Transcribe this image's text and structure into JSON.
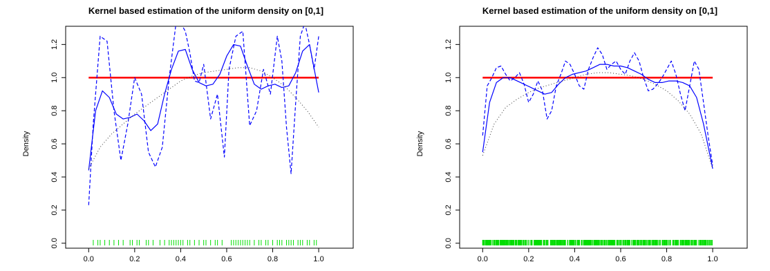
{
  "chart_data": [
    {
      "type": "line",
      "title": "Kernel based estimation of the uniform density on [0,1]",
      "xlabel": "",
      "ylabel": "Density",
      "xlim": [
        -0.1,
        1.15
      ],
      "ylim": [
        -0.03,
        1.31
      ],
      "x_ticks": [
        "0.0",
        "0.2",
        "0.4",
        "0.6",
        "0.8",
        "1.0"
      ],
      "y_ticks": [
        "0.0",
        "0.2",
        "0.4",
        "0.6",
        "0.8",
        "1.0",
        "1.2"
      ],
      "grid": false,
      "colors": {
        "true_density": "#ff0000",
        "estimates": "#0000ff",
        "wide_estimate": "#333333",
        "rug": "#00dd00"
      },
      "series": [
        {
          "style": "solid-red",
          "x": [
            0.0,
            1.0
          ],
          "y": [
            1.0,
            1.0
          ]
        },
        {
          "style": "solid-blue",
          "x": [
            0.0,
            0.03,
            0.06,
            0.09,
            0.12,
            0.15,
            0.18,
            0.21,
            0.24,
            0.27,
            0.3,
            0.33,
            0.36,
            0.39,
            0.42,
            0.45,
            0.48,
            0.51,
            0.54,
            0.57,
            0.6,
            0.63,
            0.66,
            0.69,
            0.72,
            0.75,
            0.78,
            0.81,
            0.84,
            0.87,
            0.9,
            0.93,
            0.96,
            1.0
          ],
          "y": [
            0.44,
            0.8,
            0.92,
            0.88,
            0.78,
            0.75,
            0.76,
            0.78,
            0.74,
            0.68,
            0.72,
            0.9,
            1.05,
            1.16,
            1.17,
            1.05,
            0.97,
            0.95,
            0.96,
            1.02,
            1.13,
            1.2,
            1.19,
            1.07,
            0.96,
            0.93,
            0.95,
            0.96,
            0.94,
            0.95,
            1.03,
            1.16,
            1.2,
            0.91
          ]
        },
        {
          "style": "dashed-blue",
          "x": [
            0.0,
            0.02,
            0.05,
            0.08,
            0.11,
            0.14,
            0.17,
            0.2,
            0.23,
            0.26,
            0.29,
            0.32,
            0.35,
            0.38,
            0.4,
            0.42,
            0.44,
            0.46,
            0.48,
            0.5,
            0.53,
            0.56,
            0.59,
            0.61,
            0.64,
            0.67,
            0.7,
            0.73,
            0.76,
            0.79,
            0.82,
            0.84,
            0.86,
            0.88,
            0.9,
            0.92,
            0.94,
            0.96,
            0.98,
            1.0
          ],
          "y": [
            0.23,
            0.72,
            1.25,
            1.22,
            0.8,
            0.5,
            0.72,
            1.0,
            0.9,
            0.55,
            0.46,
            0.58,
            1.0,
            1.33,
            1.33,
            1.28,
            1.15,
            0.98,
            0.97,
            1.08,
            0.75,
            0.9,
            0.52,
            1.05,
            1.25,
            1.28,
            0.71,
            0.8,
            1.05,
            0.9,
            1.25,
            1.1,
            0.7,
            0.42,
            0.85,
            1.25,
            1.33,
            1.2,
            1.05,
            1.25
          ]
        },
        {
          "style": "dotted-black",
          "x": [
            0.0,
            0.05,
            0.1,
            0.15,
            0.2,
            0.25,
            0.3,
            0.35,
            0.4,
            0.45,
            0.5,
            0.55,
            0.6,
            0.65,
            0.7,
            0.75,
            0.8,
            0.85,
            0.9,
            0.95,
            1.0
          ],
          "y": [
            0.45,
            0.58,
            0.66,
            0.72,
            0.78,
            0.83,
            0.88,
            0.93,
            0.98,
            1.01,
            1.03,
            1.04,
            1.05,
            1.06,
            1.06,
            1.04,
            1.0,
            0.95,
            0.88,
            0.8,
            0.7
          ]
        }
      ],
      "rug": [
        0.02,
        0.04,
        0.05,
        0.07,
        0.09,
        0.11,
        0.13,
        0.15,
        0.18,
        0.19,
        0.21,
        0.22,
        0.25,
        0.26,
        0.28,
        0.31,
        0.33,
        0.35,
        0.36,
        0.37,
        0.38,
        0.39,
        0.4,
        0.41,
        0.43,
        0.44,
        0.46,
        0.48,
        0.5,
        0.51,
        0.53,
        0.55,
        0.56,
        0.58,
        0.62,
        0.63,
        0.64,
        0.65,
        0.66,
        0.67,
        0.68,
        0.69,
        0.7,
        0.72,
        0.74,
        0.75,
        0.77,
        0.78,
        0.8,
        0.82,
        0.83,
        0.84,
        0.86,
        0.87,
        0.88,
        0.89,
        0.91,
        0.92,
        0.93,
        0.95,
        0.96,
        0.98,
        0.99
      ]
    },
    {
      "type": "line",
      "title": "Kernel based estimation of the uniform density on [0,1]",
      "xlabel": "",
      "ylabel": "Density",
      "xlim": [
        -0.1,
        1.15
      ],
      "ylim": [
        -0.03,
        1.31
      ],
      "x_ticks": [
        "0.0",
        "0.2",
        "0.4",
        "0.6",
        "0.8",
        "1.0"
      ],
      "y_ticks": [
        "0.0",
        "0.2",
        "0.4",
        "0.6",
        "0.8",
        "1.0",
        "1.2"
      ],
      "grid": false,
      "colors": {
        "true_density": "#ff0000",
        "estimates": "#0000ff",
        "wide_estimate": "#333333",
        "rug": "#00dd00"
      },
      "series": [
        {
          "style": "solid-red",
          "x": [
            0.0,
            1.0
          ],
          "y": [
            1.0,
            1.0
          ]
        },
        {
          "style": "solid-blue",
          "x": [
            0.0,
            0.03,
            0.06,
            0.09,
            0.12,
            0.15,
            0.18,
            0.21,
            0.24,
            0.27,
            0.3,
            0.33,
            0.36,
            0.39,
            0.42,
            0.45,
            0.48,
            0.51,
            0.54,
            0.57,
            0.6,
            0.63,
            0.66,
            0.69,
            0.72,
            0.75,
            0.78,
            0.81,
            0.84,
            0.87,
            0.9,
            0.93,
            0.96,
            1.0
          ],
          "y": [
            0.55,
            0.85,
            0.97,
            1.0,
            1.0,
            0.98,
            0.96,
            0.94,
            0.92,
            0.9,
            0.91,
            0.96,
            1.0,
            1.02,
            1.03,
            1.04,
            1.06,
            1.08,
            1.08,
            1.07,
            1.07,
            1.06,
            1.04,
            1.02,
            0.99,
            0.97,
            0.97,
            0.98,
            0.98,
            0.97,
            0.95,
            0.88,
            0.72,
            0.45
          ]
        },
        {
          "style": "dashed-blue",
          "x": [
            0.0,
            0.02,
            0.04,
            0.06,
            0.08,
            0.1,
            0.12,
            0.14,
            0.16,
            0.18,
            0.2,
            0.22,
            0.24,
            0.26,
            0.28,
            0.3,
            0.32,
            0.34,
            0.36,
            0.38,
            0.4,
            0.42,
            0.44,
            0.46,
            0.48,
            0.5,
            0.52,
            0.54,
            0.56,
            0.58,
            0.6,
            0.62,
            0.64,
            0.66,
            0.68,
            0.7,
            0.72,
            0.74,
            0.76,
            0.78,
            0.8,
            0.82,
            0.84,
            0.86,
            0.88,
            0.9,
            0.92,
            0.94,
            0.96,
            0.98,
            1.0
          ],
          "y": [
            0.65,
            0.95,
            1.0,
            1.06,
            1.07,
            1.02,
            0.98,
            1.0,
            1.03,
            0.96,
            0.85,
            0.9,
            0.98,
            0.92,
            0.75,
            0.8,
            0.95,
            1.02,
            1.1,
            1.08,
            1.02,
            0.95,
            0.93,
            1.05,
            1.12,
            1.18,
            1.14,
            1.05,
            1.08,
            1.1,
            1.05,
            1.02,
            1.1,
            1.15,
            1.1,
            1.0,
            0.92,
            0.93,
            0.96,
            1.0,
            1.05,
            1.1,
            1.02,
            0.9,
            0.8,
            0.95,
            1.1,
            1.05,
            0.85,
            0.65,
            0.47
          ]
        },
        {
          "style": "dotted-black",
          "x": [
            0.0,
            0.05,
            0.1,
            0.15,
            0.2,
            0.25,
            0.3,
            0.35,
            0.4,
            0.45,
            0.5,
            0.55,
            0.6,
            0.65,
            0.7,
            0.75,
            0.8,
            0.85,
            0.9,
            0.95,
            1.0
          ],
          "y": [
            0.53,
            0.72,
            0.82,
            0.87,
            0.91,
            0.94,
            0.96,
            0.98,
            1.0,
            1.02,
            1.03,
            1.03,
            1.02,
            1.01,
            0.99,
            0.96,
            0.92,
            0.86,
            0.78,
            0.66,
            0.45
          ]
        }
      ],
      "rug": "dense"
    }
  ]
}
